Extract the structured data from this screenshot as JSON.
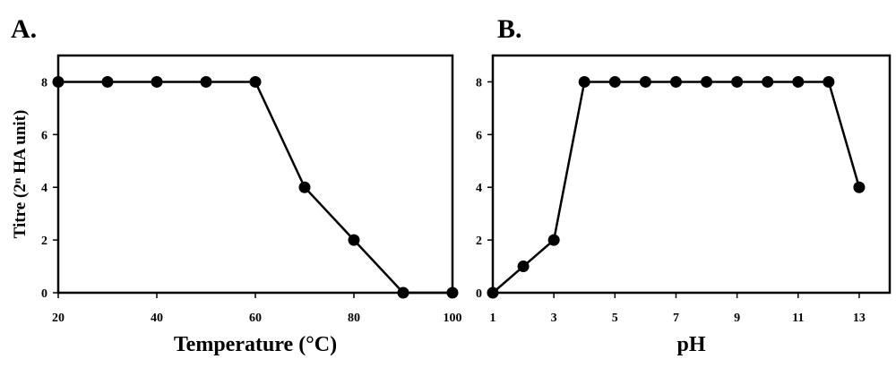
{
  "chart_data": [
    {
      "panel_label": "A.",
      "type": "line",
      "xlabel": "Temperature (°C)",
      "ylabel": "Titre (2ⁿ HA unit)",
      "xlim": [
        20,
        100
      ],
      "ylim": [
        0,
        9
      ],
      "xticks": [
        20,
        40,
        60,
        80,
        100
      ],
      "yticks": [
        0,
        2,
        4,
        6,
        8
      ],
      "grid": false,
      "series": [
        {
          "x": [
            20,
            30,
            40,
            50,
            60,
            70,
            80,
            90,
            100
          ],
          "y": [
            8,
            8,
            8,
            8,
            8,
            4,
            2,
            0,
            0
          ]
        }
      ]
    },
    {
      "panel_label": "B.",
      "type": "line",
      "xlabel": "pH",
      "ylabel": "",
      "xlim": [
        1,
        14
      ],
      "ylim": [
        0,
        9
      ],
      "xticks": [
        1,
        3,
        5,
        7,
        9,
        11,
        13
      ],
      "yticks": [
        0,
        2,
        4,
        6,
        8
      ],
      "grid": false,
      "series": [
        {
          "x": [
            1,
            2,
            3,
            4,
            5,
            6,
            7,
            8,
            9,
            10,
            11,
            12,
            13
          ],
          "y": [
            0,
            1,
            2,
            8,
            8,
            8,
            8,
            8,
            8,
            8,
            8,
            8,
            4
          ]
        }
      ]
    }
  ]
}
